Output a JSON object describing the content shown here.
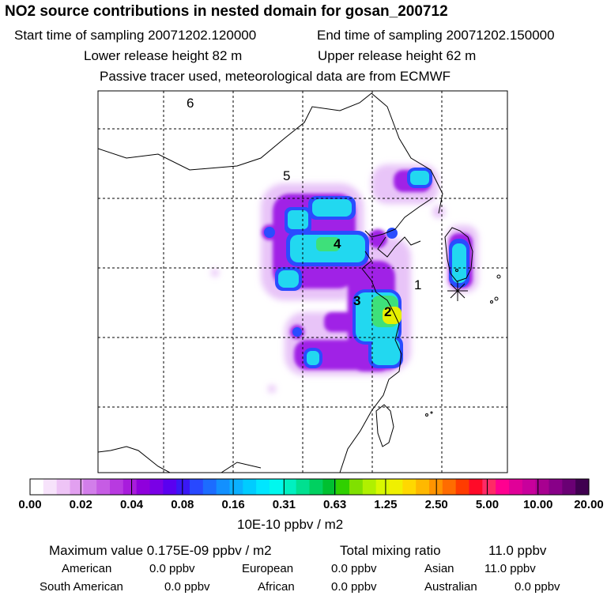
{
  "header": {
    "title": "NO2 source contributions in nested domain for gosan_200712",
    "start_label": "Start time of sampling 20071202.120000",
    "end_label": "End time of sampling 20071202.150000",
    "lower_label": "Lower release height   82 m",
    "upper_label": "Upper release height   62 m",
    "tracer_note": "Passive tracer used, meteorological data are from ECMWF"
  },
  "chart_data": {
    "type": "heatmap",
    "title": "NO2 source contributions in nested domain for gosan_200712",
    "region_labels": [
      "1",
      "2",
      "3",
      "4",
      "5",
      "6"
    ],
    "receptor": "gosan",
    "colorbar": {
      "unit_label": "10E-10 ppbv / m2",
      "ticks": [
        "0.00",
        "0.02",
        "0.04",
        "0.08",
        "0.16",
        "0.31",
        "0.63",
        "1.25",
        "2.50",
        "5.00",
        "10.00",
        "20.00"
      ],
      "colors": [
        "#ffffff",
        "#f7e3fb",
        "#eec4f6",
        "#e2a0f0",
        "#d27eea",
        "#c65ce4",
        "#b83ae0",
        "#a81cdc",
        "#8f00dc",
        "#7a00e6",
        "#5a00f0",
        "#3a18f5",
        "#2848ff",
        "#1c6cff",
        "#1290ff",
        "#0ab0ff",
        "#00ccff",
        "#00e6ff",
        "#00f8ee",
        "#00f0c0",
        "#00e090",
        "#00d060",
        "#00c030",
        "#30d000",
        "#80e000",
        "#b0f000",
        "#d8f800",
        "#f0f000",
        "#ffd800",
        "#ffb800",
        "#ff9400",
        "#ff6c00",
        "#ff3c00",
        "#ff0a28",
        "#ff2a66",
        "#ff0090",
        "#e00098",
        "#c8009c",
        "#a80090",
        "#880088",
        "#6a0074",
        "#400050"
      ]
    },
    "max_value_label": "Maximum value  0.175E-09 ppbv / m2",
    "total_mixing_label": "Total mixing ratio",
    "total_mixing_value": "11.0 ppbv",
    "contributions": [
      {
        "region": "American",
        "value": "0.0 ppbv"
      },
      {
        "region": "European",
        "value": "0.0 ppbv"
      },
      {
        "region": "Asian",
        "value": "11.0 ppbv"
      },
      {
        "region": "South American",
        "value": "0.0 ppbv"
      },
      {
        "region": "African",
        "value": "0.0 ppbv"
      },
      {
        "region": "Australian",
        "value": "0.0 ppbv"
      }
    ],
    "colors": {
      "plume_light": "#dca8f2",
      "plume_mid": "#a020e6",
      "plume_blue": "#2850ff",
      "plume_cyan": "#18e0f0",
      "plume_green": "#40e070",
      "plume_yellow": "#e8f000"
    }
  }
}
